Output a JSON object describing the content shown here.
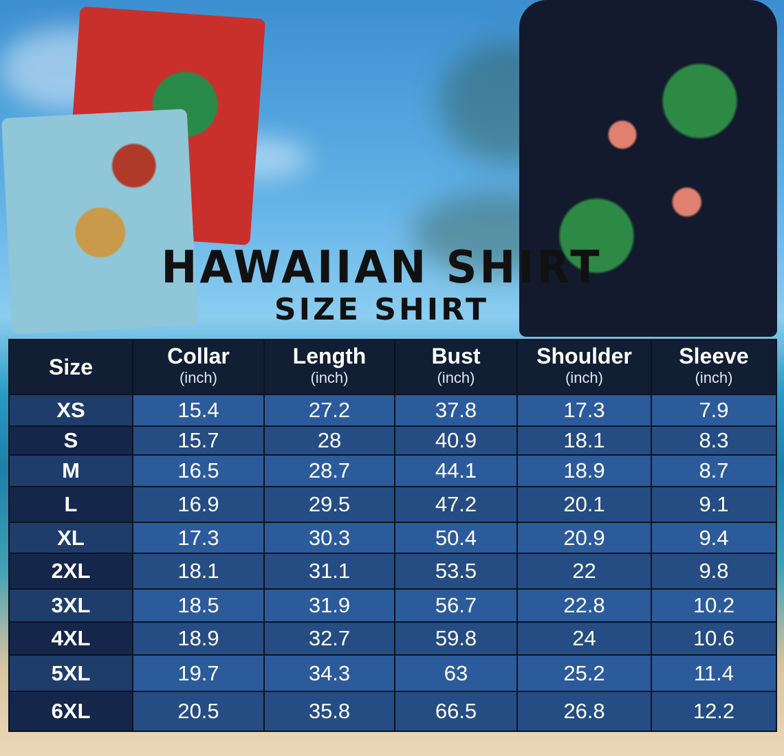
{
  "title": "HAWAIIAN SHIRT",
  "subtitle": "SIZE SHIRT",
  "colors": {
    "header": "#111e33",
    "row_light": "#2c5b9b",
    "row_dark": "#254c83",
    "size_col": "#14264a"
  },
  "table": {
    "headers": [
      {
        "label": "Size",
        "unit": ""
      },
      {
        "label": "Collar",
        "unit": "(inch)"
      },
      {
        "label": "Length",
        "unit": "(inch)"
      },
      {
        "label": "Bust",
        "unit": "(inch)"
      },
      {
        "label": "Shoulder",
        "unit": "(inch)"
      },
      {
        "label": "Sleeve",
        "unit": "(inch)"
      }
    ],
    "rows": [
      [
        "XS",
        "15.4",
        "27.2",
        "37.8",
        "17.3",
        "7.9"
      ],
      [
        "S",
        "15.7",
        "28",
        "40.9",
        "18.1",
        "8.3"
      ],
      [
        "M",
        "16.5",
        "28.7",
        "44.1",
        "18.9",
        "8.7"
      ],
      [
        "L",
        "16.9",
        "29.5",
        "47.2",
        "20.1",
        "9.1"
      ],
      [
        "XL",
        "17.3",
        "30.3",
        "50.4",
        "20.9",
        "9.4"
      ],
      [
        "2XL",
        "18.1",
        "31.1",
        "53.5",
        "22",
        "9.8"
      ],
      [
        "3XL",
        "18.5",
        "31.9",
        "56.7",
        "22.8",
        "10.2"
      ],
      [
        "4XL",
        "18.9",
        "32.7",
        "59.8",
        "24",
        "10.6"
      ],
      [
        "5XL",
        "19.7",
        "34.3",
        "63",
        "25.2",
        "11.4"
      ],
      [
        "6XL",
        "20.5",
        "35.8",
        "66.5",
        "26.8",
        "12.2"
      ]
    ]
  }
}
